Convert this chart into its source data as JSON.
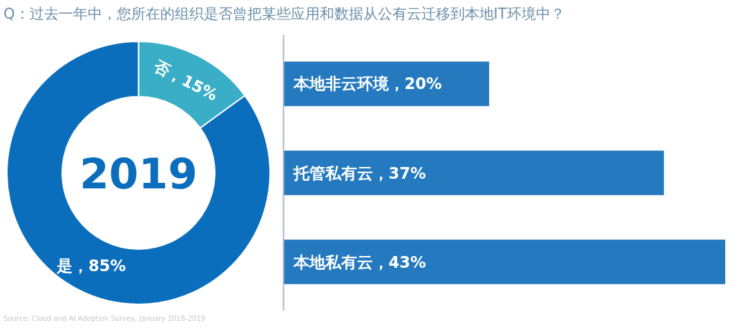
{
  "chart_data": [
    {
      "type": "donut",
      "title": "Q：过去一年中，您所在的组织是否曾把某些应用和数据从公有云迁移到本地IT环境中？",
      "categories": [
        null,
        null
      ],
      "values": [
        15,
        85
      ],
      "colors": [
        "#3aaec6",
        "#0a6ebd"
      ],
      "value_labels": [
        "否，15%",
        "是，85%"
      ],
      "annotations": [
        "2019",
        "Source:  Cloud and AI Adoption Survey, January 2018-2019"
      ]
    },
    {
      "type": "bar",
      "orientation": "horizontal",
      "categories": [
        null,
        null,
        null
      ],
      "values": [
        20,
        37,
        43
      ],
      "color": "#2479bf",
      "value_labels": [
        "本地非云环境，20%",
        "托管私有云，37%",
        "本地私有云，43%"
      ],
      "xlim": [
        0,
        43
      ],
      "tick_labels": false
    }
  ]
}
